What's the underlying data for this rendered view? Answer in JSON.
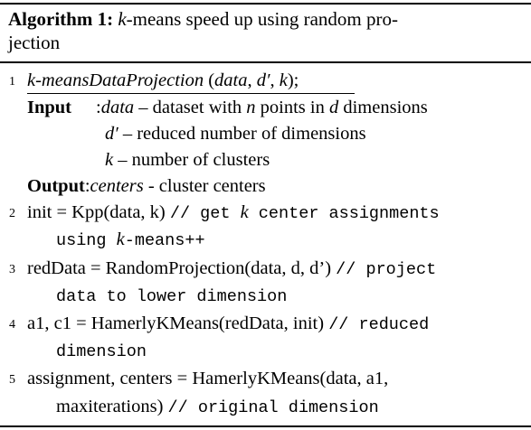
{
  "caption": {
    "label": "Algorithm 1:",
    "k": "k",
    "title_rest": "-means speed up using random pro-",
    "title_line2": "jection"
  },
  "lines": {
    "l1": {
      "num": "1",
      "func": "k-meansDataProjection",
      "args_open": " (",
      "arg1": "data",
      "sep1": ", ",
      "arg2": "d′",
      "sep2": ", ",
      "arg3": "k",
      "args_close": ");"
    },
    "input": {
      "keyword": "Input",
      "colon": ":",
      "p1_name": "data",
      "p1_desc_a": " – dataset with ",
      "p1_n": "n",
      "p1_desc_b": " points in ",
      "p1_d": "d",
      "p1_desc_c": " dimensions",
      "p2_name": "d′",
      "p2_desc": " – reduced number of dimensions",
      "p3_name": "k",
      "p3_desc": " – number of clusters"
    },
    "output": {
      "keyword": "Output",
      "colon": ":",
      "name": "centers",
      "desc": " - cluster centers"
    },
    "l2": {
      "num": "2",
      "code": "init = Kpp(data, k) ",
      "comment_a": "// get ",
      "comment_k": "k",
      "comment_b": " center assignments",
      "cont_a": "using ",
      "cont_k": "k",
      "cont_b": "-means++"
    },
    "l3": {
      "num": "3",
      "code": "redData = RandomProjection(data, d, d’) ",
      "comment": "// project",
      "cont": "data to lower dimension"
    },
    "l4": {
      "num": "4",
      "code": "a1, c1 = HamerlyKMeans(redData, init) ",
      "comment": "// reduced",
      "cont": "dimension"
    },
    "l5": {
      "num": "5",
      "code": "assignment, centers = HamerlyKMeans(data, a1,",
      "cont_code": "maxiterations) ",
      "cont_comment": "// original dimension"
    }
  }
}
